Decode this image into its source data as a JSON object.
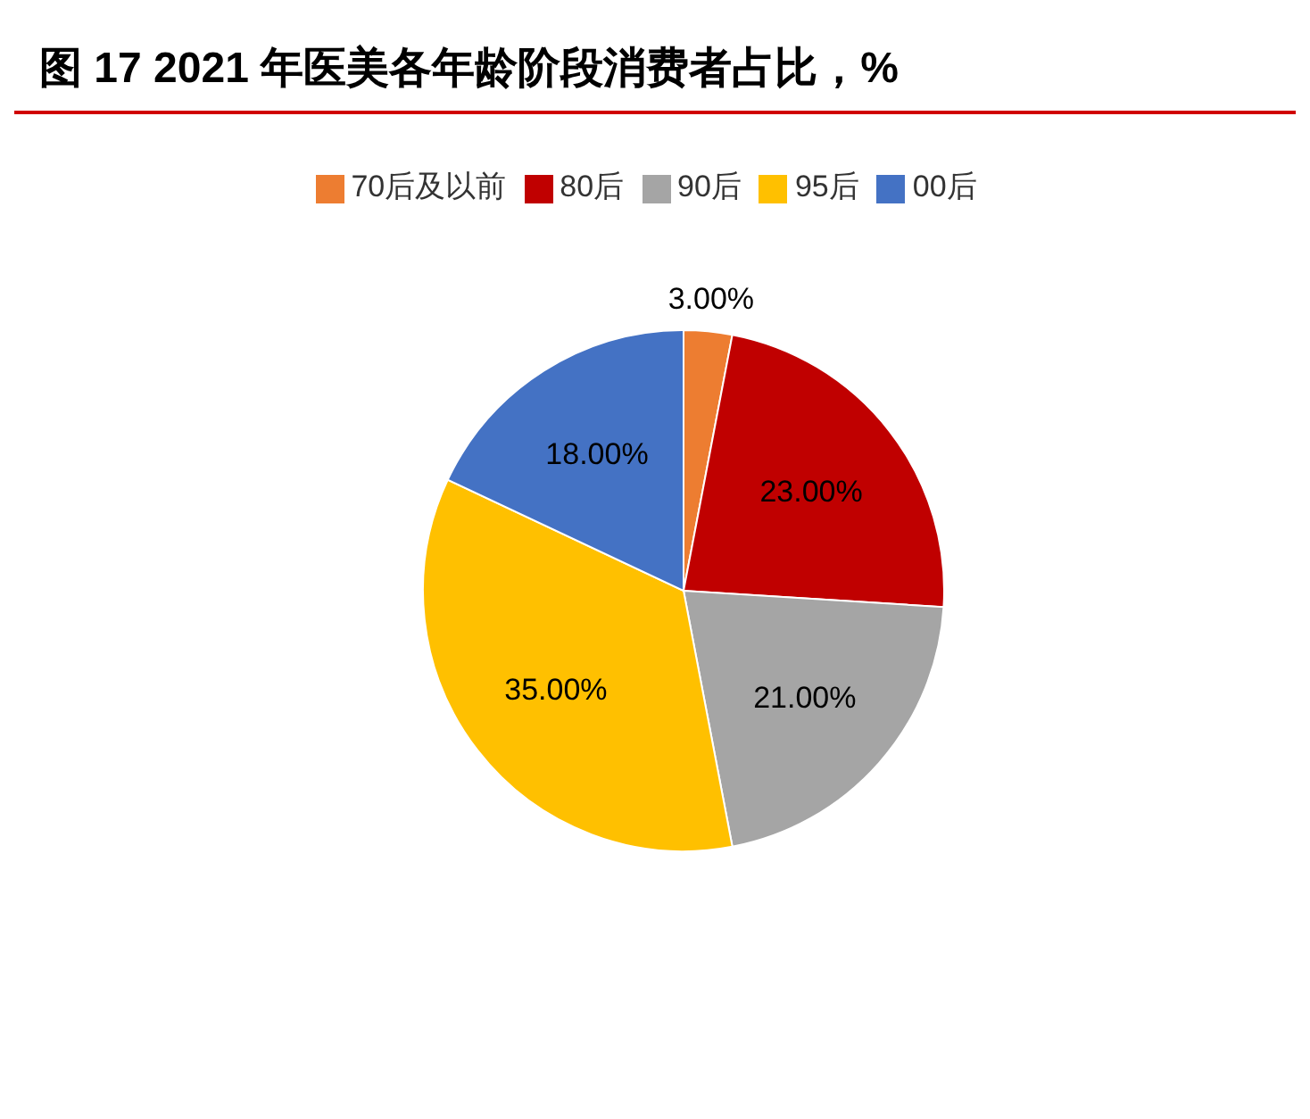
{
  "chart_data": {
    "type": "pie",
    "title": "图 17 2021 年医美各年龄阶段消费者占比，%",
    "categories": [
      "70后及以前",
      "80后",
      "90后",
      "95后",
      "00后"
    ],
    "values": [
      3,
      23,
      21,
      35,
      18
    ],
    "colors": [
      "#ed7d31",
      "#c00000",
      "#a5a5a5",
      "#ffc000",
      "#4472c4"
    ],
    "value_labels": [
      "3.00%",
      "23.00%",
      "21.00%",
      "35.00%",
      "18.00%"
    ],
    "legend": "top"
  }
}
